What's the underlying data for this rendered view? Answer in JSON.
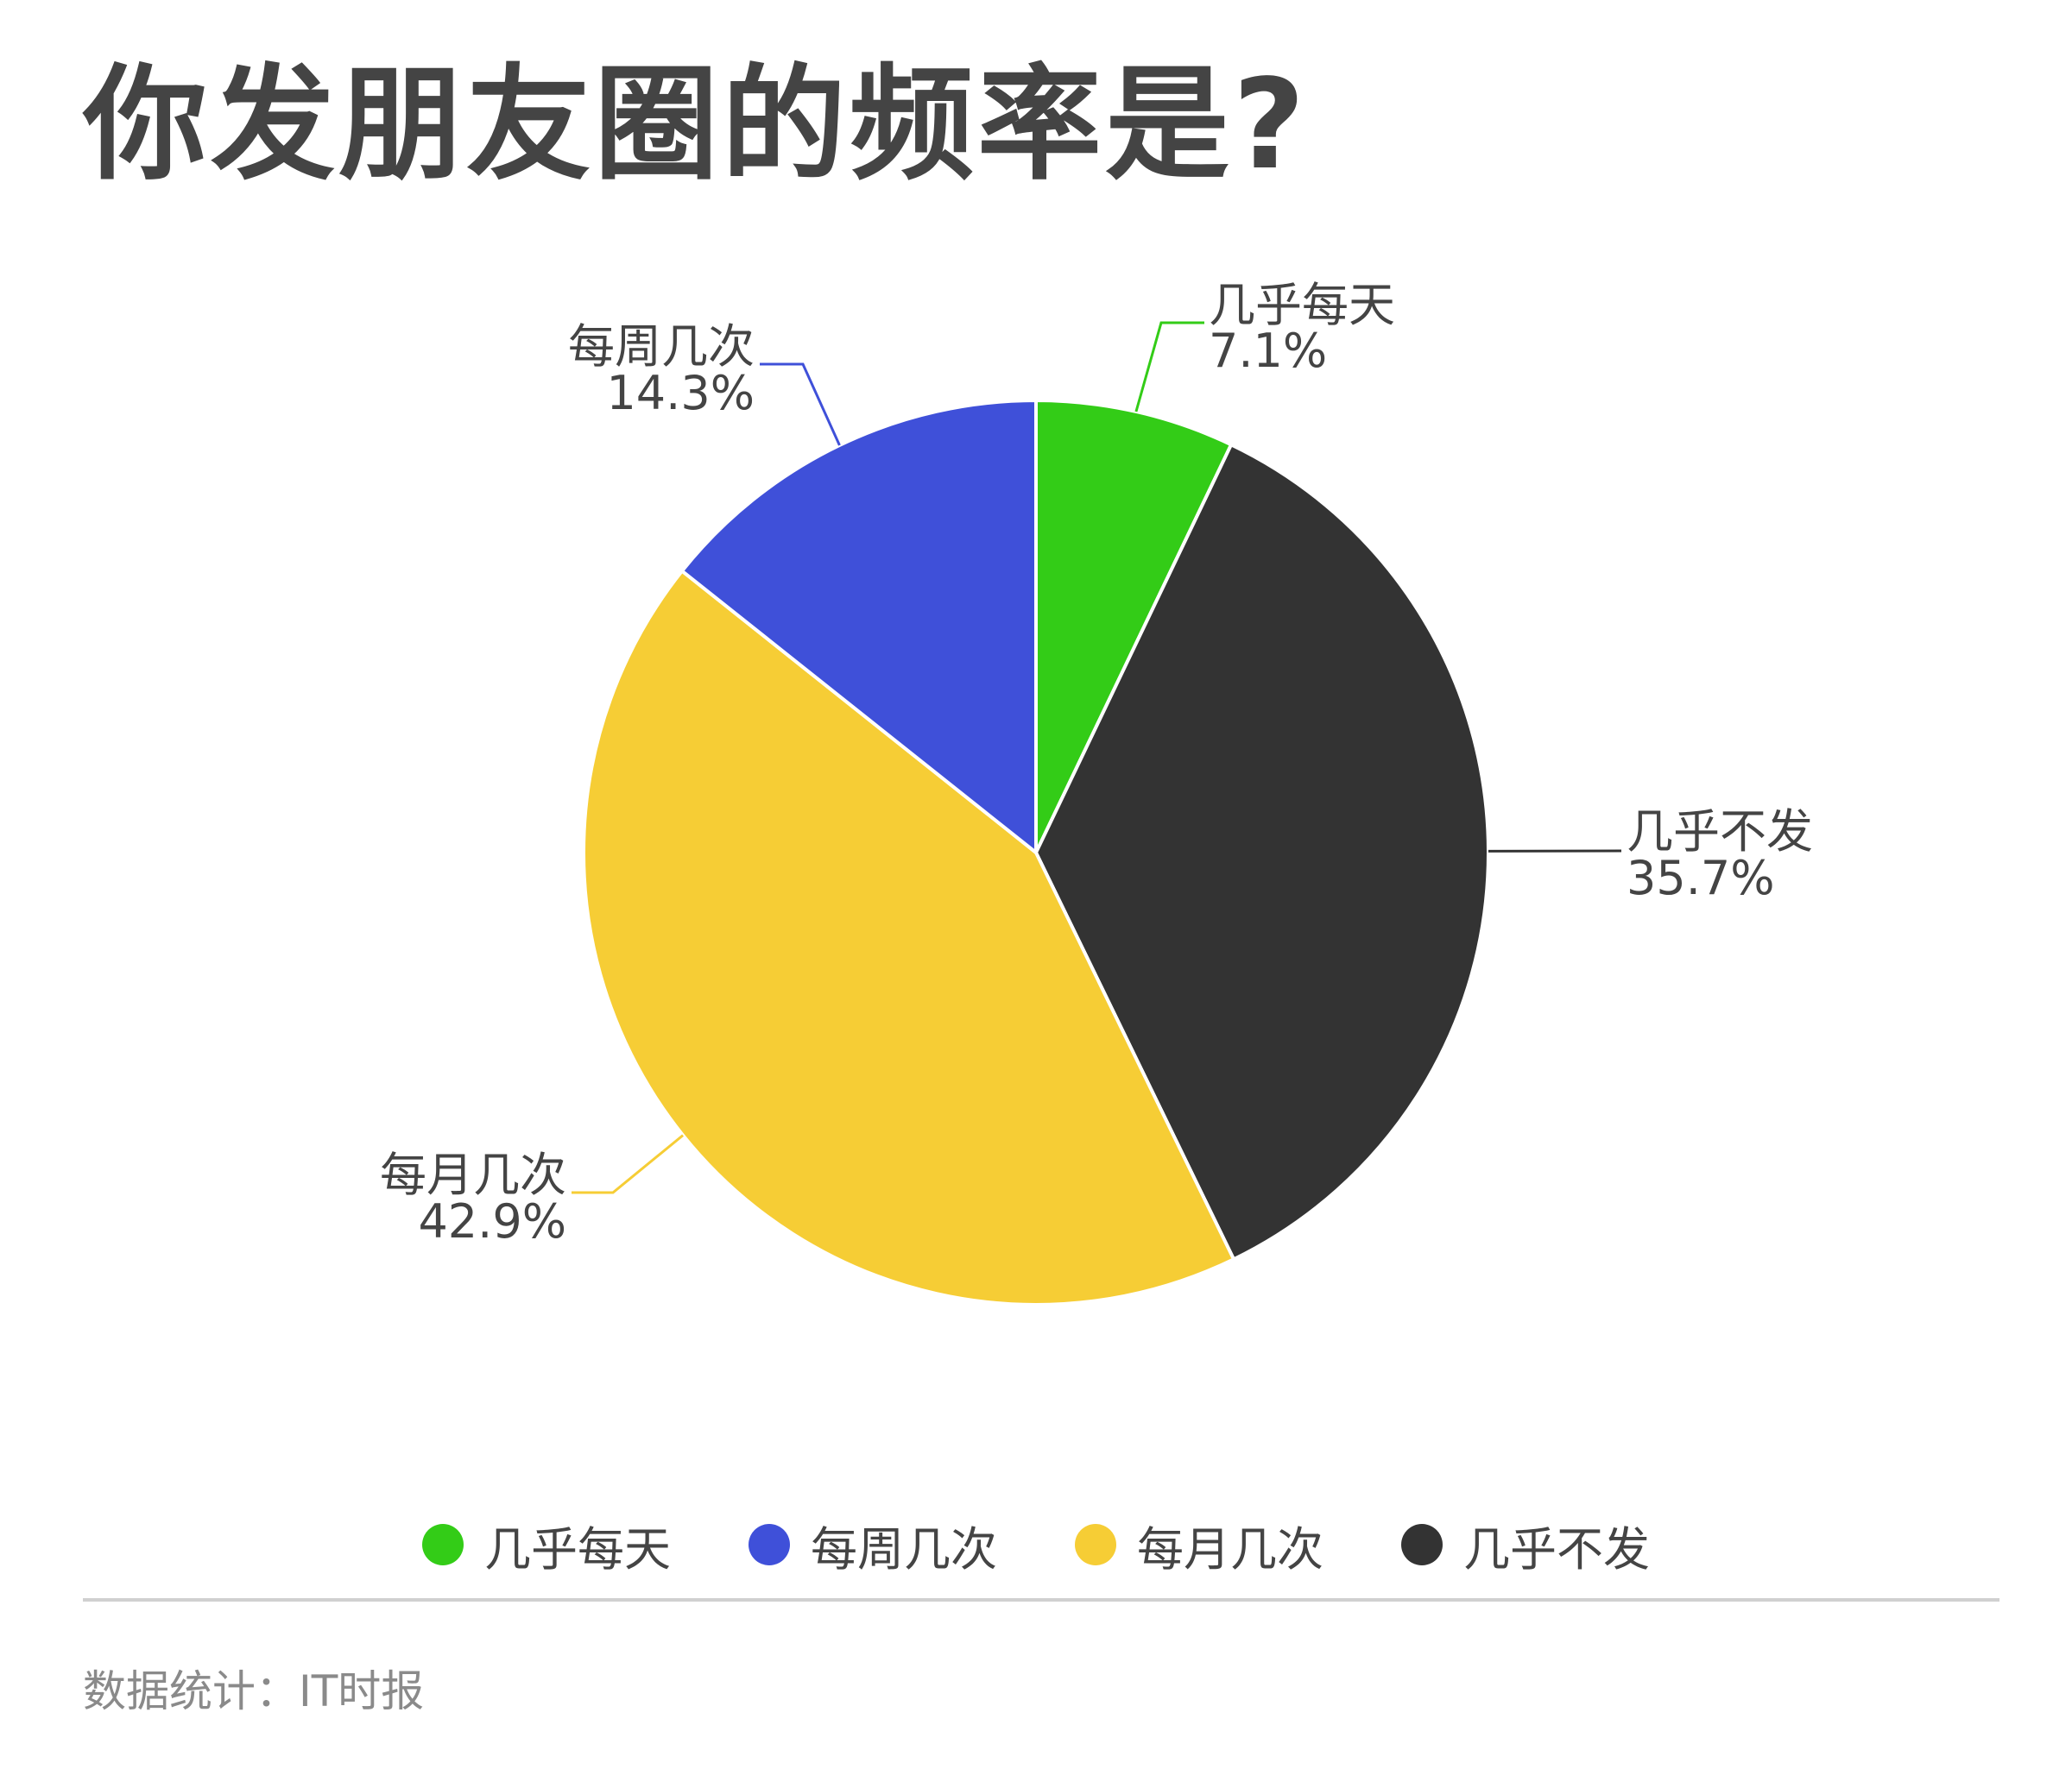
{
  "title": "你发朋友圈的频率是?",
  "chart_data": {
    "type": "pie",
    "title": "你发朋友圈的频率是?",
    "slices": [
      {
        "label": "几乎每天",
        "value": 7.1,
        "value_label": "7.1%",
        "color": "#33cc17"
      },
      {
        "label": "几乎不发",
        "value": 35.7,
        "value_label": "35.7%",
        "color": "#333333"
      },
      {
        "label": "每月几次",
        "value": 42.9,
        "value_label": "42.9%",
        "color": "#f6cd35"
      },
      {
        "label": "每周几次",
        "value": 14.3,
        "value_label": "14.3%",
        "color": "#3f50d9"
      }
    ],
    "legend_position": "bottom",
    "legend": [
      {
        "label": "几乎每天",
        "color": "#33cc17"
      },
      {
        "label": "每周几次",
        "color": "#3f50d9"
      },
      {
        "label": "每月几次",
        "color": "#f6cd35"
      },
      {
        "label": "几乎不发",
        "color": "#333333"
      }
    ]
  },
  "footer": {
    "source": "数据统计：IT时报"
  }
}
